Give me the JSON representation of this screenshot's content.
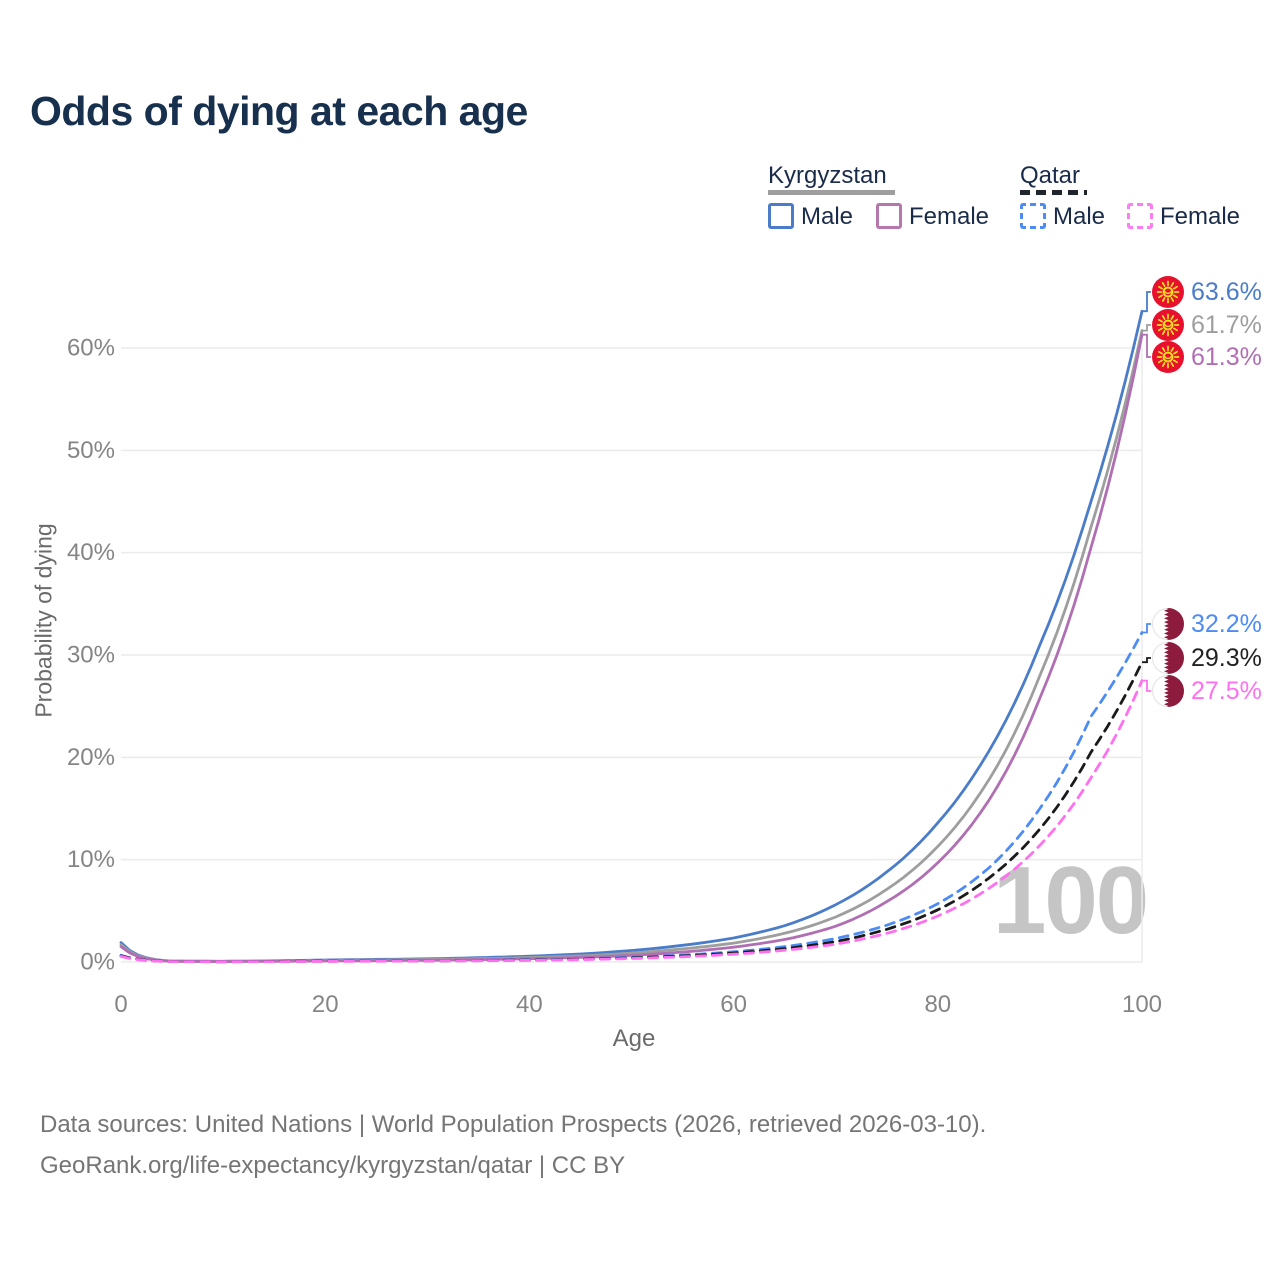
{
  "title": "Odds of dying at each age",
  "legend": {
    "kyrgyzstan": {
      "label": "Kyrgyzstan",
      "male": "Male",
      "female": "Female"
    },
    "qatar": {
      "label": "Qatar",
      "male": "Male",
      "female": "Female"
    }
  },
  "footer": {
    "line1": "Data sources: United Nations | World Population Prospects (2026, retrieved 2026-03-10).",
    "line2": "GeoRank.org/life-expectancy/kyrgyzstan/qatar | CC BY"
  },
  "chart_data": {
    "type": "line",
    "title": "Odds of dying at each age",
    "xlabel": "Age",
    "ylabel": "Probability of dying",
    "xlim": [
      0,
      100
    ],
    "ylim_percent": [
      0,
      66
    ],
    "grid": "horizontal",
    "hover_age": "100",
    "xticks": [
      {
        "label": "0",
        "value": 0
      },
      {
        "label": "20",
        "value": 20
      },
      {
        "label": "40",
        "value": 40
      },
      {
        "label": "60",
        "value": 60
      },
      {
        "label": "80",
        "value": 80
      },
      {
        "label": "100",
        "value": 100
      }
    ],
    "yticks": [
      {
        "label": "0%",
        "value": 0
      },
      {
        "label": "10%",
        "value": 10
      },
      {
        "label": "20%",
        "value": 20
      },
      {
        "label": "30%",
        "value": 30
      },
      {
        "label": "40%",
        "value": 40
      },
      {
        "label": "50%",
        "value": 50
      },
      {
        "label": "60%",
        "value": 60
      }
    ],
    "ages": [
      0,
      5,
      10,
      15,
      20,
      25,
      30,
      35,
      40,
      45,
      50,
      55,
      60,
      65,
      70,
      75,
      80,
      85,
      90,
      95,
      100
    ],
    "series": [
      {
        "name": "Kyrgyzstan Male",
        "country": "kyrgyzstan",
        "sex": "male",
        "line_style": "solid",
        "color": "#4a7cc9",
        "label_color": "#4a7cc9",
        "end_label": "63.6%",
        "end_value": 63.6,
        "values": [
          1.9,
          0.09,
          0.07,
          0.12,
          0.2,
          0.25,
          0.31,
          0.42,
          0.57,
          0.78,
          1.12,
          1.63,
          2.35,
          3.55,
          5.6,
          8.8,
          13.6,
          20.6,
          31.0,
          45.0,
          63.6
        ]
      },
      {
        "name": "Kyrgyzstan Both sexes",
        "country": "kyrgyzstan",
        "sex": "all",
        "line_style": "solid",
        "color": "#9e9e9e",
        "label_color": "#9e9e9e",
        "end_label": "61.7%",
        "end_value": 61.7,
        "values": [
          1.7,
          0.08,
          0.06,
          0.09,
          0.15,
          0.19,
          0.24,
          0.32,
          0.44,
          0.6,
          0.87,
          1.28,
          1.85,
          2.8,
          4.4,
          7.1,
          11.3,
          17.8,
          28.0,
          42.5,
          61.7
        ]
      },
      {
        "name": "Kyrgyzstan Female",
        "country": "kyrgyzstan",
        "sex": "female",
        "line_style": "solid",
        "color": "#b16fb3",
        "label_color": "#b16fb3",
        "end_label": "61.3%",
        "end_value": 61.3,
        "values": [
          1.5,
          0.07,
          0.05,
          0.07,
          0.1,
          0.13,
          0.17,
          0.23,
          0.32,
          0.45,
          0.65,
          0.98,
          1.45,
          2.2,
          3.5,
          5.9,
          9.7,
          15.8,
          25.8,
          40.5,
          61.3
        ]
      },
      {
        "name": "Qatar Male",
        "country": "qatar",
        "sex": "male",
        "line_style": "dashed",
        "color": "#4d8bf5",
        "label_color": "#4d8bf5",
        "end_label": "32.2%",
        "end_value": 32.2,
        "values": [
          0.65,
          0.05,
          0.04,
          0.07,
          0.1,
          0.11,
          0.13,
          0.16,
          0.22,
          0.31,
          0.46,
          0.68,
          1.0,
          1.5,
          2.3,
          3.6,
          5.7,
          9.2,
          15.0,
          24.0,
          32.2
        ]
      },
      {
        "name": "Qatar Both sexes",
        "country": "qatar",
        "sex": "all",
        "line_style": "dashed",
        "color": "#1a1a1a",
        "label_color": "#222222",
        "end_label": "29.3%",
        "end_value": 29.3,
        "values": [
          0.6,
          0.05,
          0.03,
          0.06,
          0.08,
          0.1,
          0.11,
          0.14,
          0.19,
          0.27,
          0.4,
          0.59,
          0.88,
          1.3,
          2.0,
          3.2,
          5.1,
          8.2,
          13.0,
          20.5,
          29.3
        ]
      },
      {
        "name": "Qatar Female",
        "country": "qatar",
        "sex": "female",
        "line_style": "dashed",
        "color": "#ff70f0",
        "label_color": "#ff70f0",
        "end_label": "27.5%",
        "end_value": 27.5,
        "values": [
          0.55,
          0.04,
          0.03,
          0.04,
          0.06,
          0.08,
          0.1,
          0.12,
          0.16,
          0.23,
          0.34,
          0.51,
          0.76,
          1.15,
          1.75,
          2.8,
          4.5,
          7.2,
          11.4,
          18.0,
          27.5
        ]
      }
    ]
  }
}
